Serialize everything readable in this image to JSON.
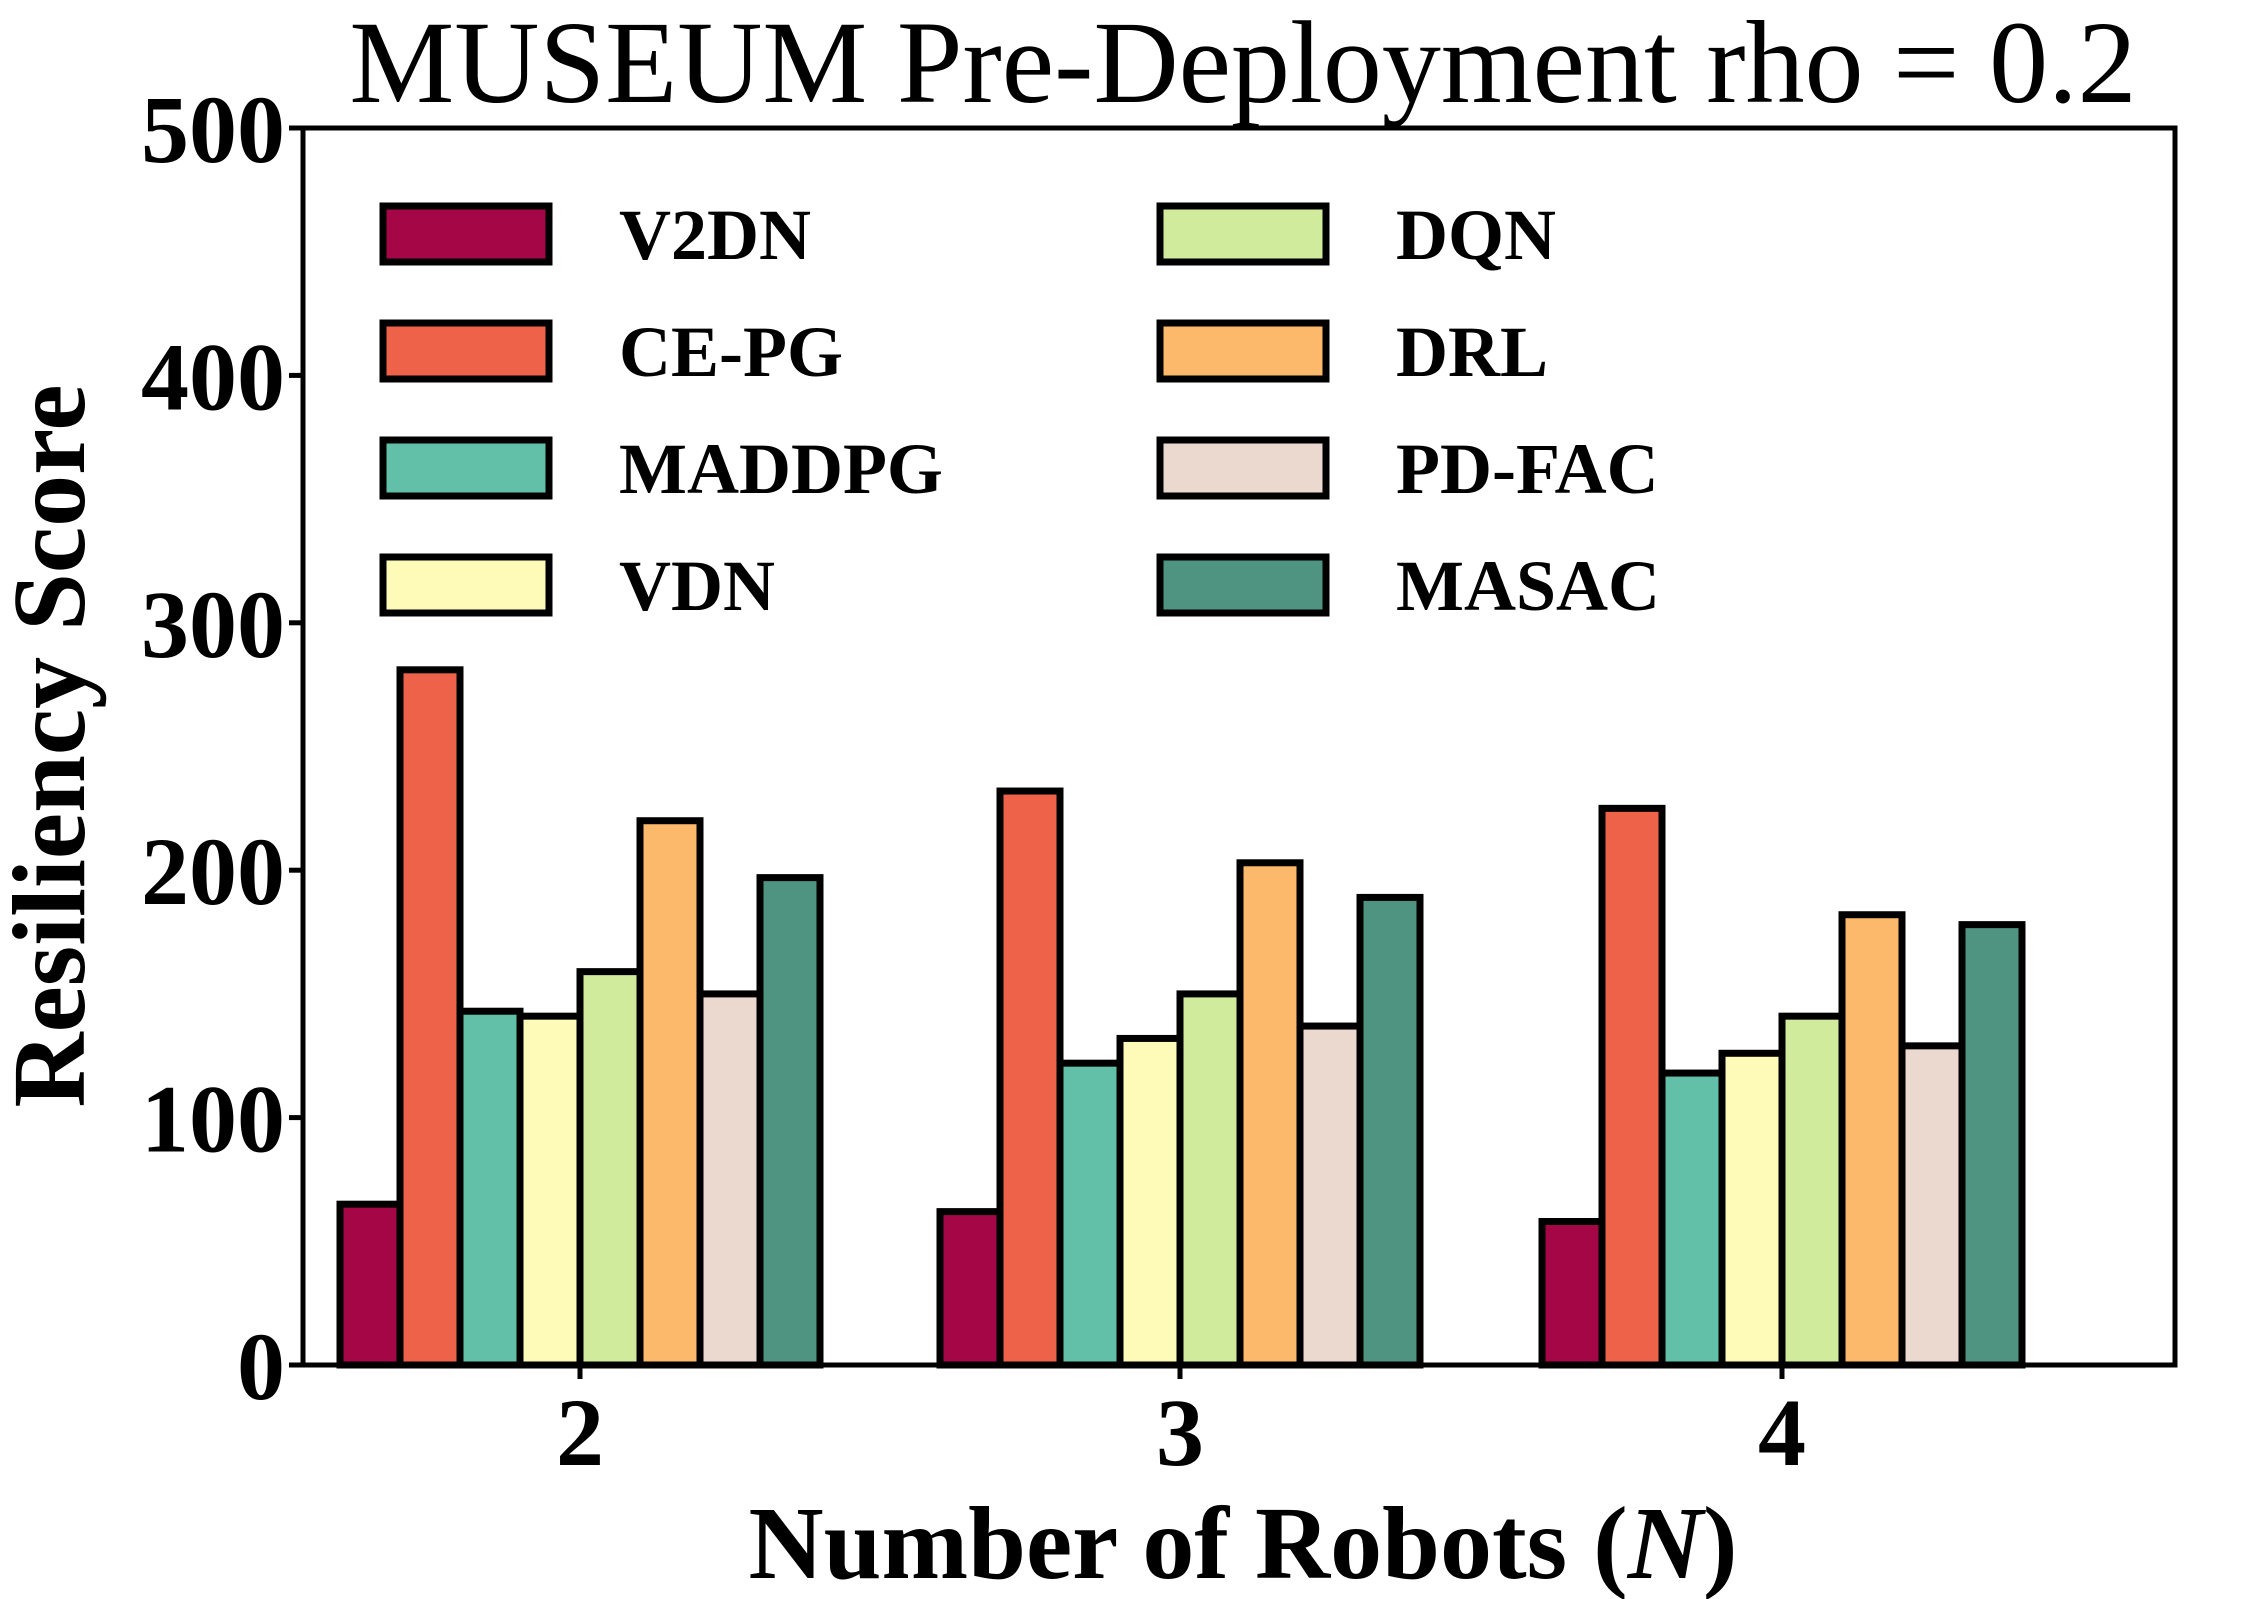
{
  "chart_data": {
    "type": "bar",
    "title": "MUSEUM Pre-Deployment rho = 0.2",
    "xlabel": "Number of Robots (",
    "xlabel_var": "N",
    "xlabel_end": ")",
    "ylabel": "Resiliency Score",
    "categories": [
      "2",
      "3",
      "4"
    ],
    "ylim": [
      0,
      500
    ],
    "yticks": [
      "0",
      "100",
      "200",
      "300",
      "400",
      "500"
    ],
    "legend_location": "upper-left, two columns",
    "grid": false,
    "series": [
      {
        "name": "V2DN",
        "color": "#a50646",
        "values": [
          65,
          62,
          58
        ]
      },
      {
        "name": "CE-PG",
        "color": "#ee624a",
        "values": [
          281,
          232,
          225
        ]
      },
      {
        "name": "MADDPG",
        "color": "#62c0a9",
        "values": [
          143,
          122,
          118
        ]
      },
      {
        "name": "VDN",
        "color": "#fefab8",
        "values": [
          141,
          132,
          126
        ]
      },
      {
        "name": "DQN",
        "color": "#cfeb9b",
        "values": [
          159,
          150,
          141
        ]
      },
      {
        "name": "DRL",
        "color": "#fcb86b",
        "values": [
          220,
          203,
          182
        ]
      },
      {
        "name": "PD-FAC",
        "color": "#ebd9cf",
        "values": [
          150,
          137,
          129
        ]
      },
      {
        "name": "MASAC",
        "color": "#4e9481",
        "values": [
          197,
          189,
          178
        ]
      }
    ]
  }
}
